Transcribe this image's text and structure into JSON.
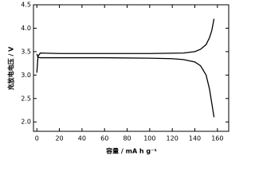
{
  "chart_data": {
    "type": "line",
    "x_label": "容量 / mA h g⁻¹",
    "y_label": "充放电电压 / V",
    "xlim": [
      -3,
      170
    ],
    "xticks": [
      0,
      20,
      40,
      60,
      80,
      100,
      120,
      140,
      160
    ],
    "ylim": [
      1.8,
      4.5
    ],
    "yticks": [
      {
        "value": 2,
        "label": "2.0"
      },
      2.5,
      {
        "value": 3,
        "label": "3.0"
      },
      3.5,
      {
        "value": 4,
        "label": "4.0"
      },
      4.5
    ],
    "series": [
      {
        "color": "#000000",
        "x": [
          0,
          1,
          3,
          20,
          60,
          100,
          130,
          140,
          145,
          150,
          153,
          155,
          157
        ],
        "values": [
          3.05,
          3.4,
          3.47,
          3.46,
          3.46,
          3.46,
          3.47,
          3.5,
          3.55,
          3.65,
          3.8,
          3.95,
          4.2
        ]
      },
      {
        "color": "#000000",
        "x": [
          0,
          1,
          3,
          20,
          60,
          100,
          120,
          130,
          140,
          145,
          150,
          153,
          155,
          157
        ],
        "values": [
          3.45,
          3.38,
          3.37,
          3.37,
          3.37,
          3.36,
          3.35,
          3.33,
          3.28,
          3.2,
          3.0,
          2.7,
          2.4,
          2.1
        ]
      }
    ]
  }
}
